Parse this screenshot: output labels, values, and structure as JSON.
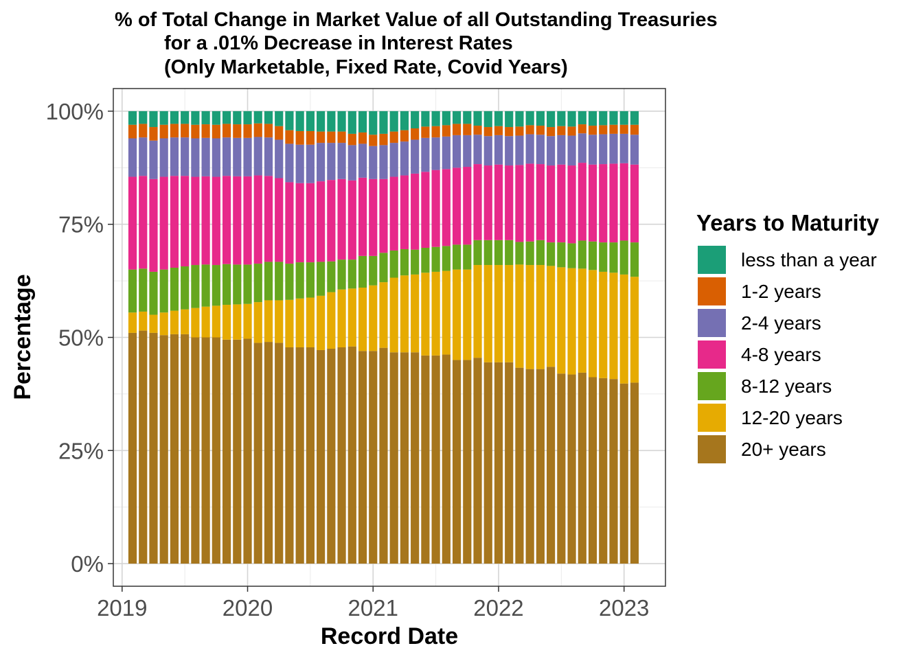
{
  "chart_data": {
    "type": "bar",
    "stacked": true,
    "title_lines": [
      "% of Total Change in Market Value of all Outstanding Treasuries",
      "for a .01% Decrease in Interest Rates",
      "(Only Marketable, Fixed Rate, Covid Years)"
    ],
    "xlabel": "Record Date",
    "ylabel": "Percentage",
    "x_ticks": [
      "2019",
      "2020",
      "2021",
      "2022",
      "2023"
    ],
    "y_ticks": [
      "0%",
      "25%",
      "50%",
      "75%",
      "100%"
    ],
    "xlim": [
      2018.93,
      2023.33
    ],
    "ylim": [
      -0.05,
      1.05
    ],
    "grid": true,
    "legend_title": "Years to Maturity",
    "legend_position": "right",
    "x": [
      "2019-02",
      "2019-03",
      "2019-04",
      "2019-05",
      "2019-06",
      "2019-07",
      "2019-08",
      "2019-09",
      "2019-10",
      "2019-11",
      "2019-12",
      "2020-01",
      "2020-02",
      "2020-03",
      "2020-04",
      "2020-05",
      "2020-06",
      "2020-07",
      "2020-08",
      "2020-09",
      "2020-10",
      "2020-11",
      "2020-12",
      "2021-01",
      "2021-02",
      "2021-03",
      "2021-04",
      "2021-05",
      "2021-06",
      "2021-07",
      "2021-08",
      "2021-09",
      "2021-10",
      "2021-11",
      "2021-12",
      "2022-01",
      "2022-02",
      "2022-03",
      "2022-04",
      "2022-05",
      "2022-06",
      "2022-07",
      "2022-08",
      "2022-09",
      "2022-10",
      "2022-11",
      "2022-12",
      "2023-01",
      "2023-02"
    ],
    "series": [
      {
        "name": "20+ years",
        "color": "#A6761D",
        "values": [
          0.51,
          0.515,
          0.51,
          0.505,
          0.507,
          0.507,
          0.5,
          0.5,
          0.5,
          0.495,
          0.495,
          0.497,
          0.488,
          0.49,
          0.488,
          0.478,
          0.478,
          0.478,
          0.472,
          0.475,
          0.478,
          0.48,
          0.47,
          0.47,
          0.477,
          0.467,
          0.467,
          0.467,
          0.46,
          0.46,
          0.462,
          0.45,
          0.45,
          0.455,
          0.445,
          0.445,
          0.445,
          0.433,
          0.43,
          0.43,
          0.435,
          0.42,
          0.418,
          0.422,
          0.412,
          0.41,
          0.408,
          0.398,
          0.4
        ]
      },
      {
        "name": "12-20 years",
        "color": "#E6AB02",
        "values": [
          0.045,
          0.042,
          0.04,
          0.05,
          0.052,
          0.055,
          0.065,
          0.068,
          0.07,
          0.077,
          0.078,
          0.077,
          0.09,
          0.092,
          0.094,
          0.105,
          0.108,
          0.11,
          0.12,
          0.125,
          0.128,
          0.128,
          0.14,
          0.145,
          0.145,
          0.165,
          0.17,
          0.172,
          0.183,
          0.185,
          0.185,
          0.2,
          0.2,
          0.205,
          0.215,
          0.215,
          0.215,
          0.228,
          0.23,
          0.23,
          0.223,
          0.235,
          0.235,
          0.23,
          0.237,
          0.235,
          0.235,
          0.241,
          0.234
        ]
      },
      {
        "name": "8-12 years",
        "color": "#66A61E",
        "values": [
          0.095,
          0.095,
          0.095,
          0.095,
          0.095,
          0.095,
          0.095,
          0.093,
          0.09,
          0.09,
          0.088,
          0.087,
          0.085,
          0.085,
          0.085,
          0.08,
          0.08,
          0.078,
          0.075,
          0.068,
          0.066,
          0.064,
          0.07,
          0.065,
          0.065,
          0.06,
          0.058,
          0.055,
          0.055,
          0.055,
          0.055,
          0.055,
          0.055,
          0.055,
          0.055,
          0.055,
          0.055,
          0.05,
          0.052,
          0.055,
          0.052,
          0.055,
          0.055,
          0.062,
          0.063,
          0.065,
          0.067,
          0.075,
          0.076
        ]
      },
      {
        "name": "4-8 years",
        "color": "#E7298A",
        "values": [
          0.205,
          0.205,
          0.205,
          0.205,
          0.203,
          0.2,
          0.195,
          0.195,
          0.195,
          0.195,
          0.195,
          0.195,
          0.195,
          0.19,
          0.185,
          0.18,
          0.175,
          0.175,
          0.178,
          0.18,
          0.178,
          0.175,
          0.173,
          0.17,
          0.163,
          0.163,
          0.163,
          0.168,
          0.168,
          0.17,
          0.17,
          0.17,
          0.172,
          0.168,
          0.165,
          0.167,
          0.165,
          0.17,
          0.172,
          0.168,
          0.17,
          0.172,
          0.172,
          0.172,
          0.17,
          0.173,
          0.174,
          0.171,
          0.172
        ]
      },
      {
        "name": "2-4 years",
        "color": "#7570B3",
        "values": [
          0.085,
          0.085,
          0.085,
          0.085,
          0.085,
          0.085,
          0.085,
          0.085,
          0.085,
          0.085,
          0.085,
          0.085,
          0.085,
          0.085,
          0.085,
          0.085,
          0.085,
          0.085,
          0.085,
          0.082,
          0.08,
          0.078,
          0.075,
          0.073,
          0.075,
          0.075,
          0.075,
          0.075,
          0.075,
          0.072,
          0.072,
          0.072,
          0.07,
          0.065,
          0.065,
          0.065,
          0.065,
          0.065,
          0.065,
          0.065,
          0.065,
          0.065,
          0.066,
          0.065,
          0.066,
          0.066,
          0.066,
          0.065,
          0.066
        ]
      },
      {
        "name": "1-2 years",
        "color": "#D95F02",
        "values": [
          0.03,
          0.03,
          0.03,
          0.03,
          0.03,
          0.03,
          0.03,
          0.03,
          0.03,
          0.03,
          0.03,
          0.03,
          0.03,
          0.03,
          0.03,
          0.03,
          0.03,
          0.03,
          0.025,
          0.025,
          0.025,
          0.025,
          0.025,
          0.025,
          0.025,
          0.025,
          0.025,
          0.025,
          0.025,
          0.025,
          0.025,
          0.025,
          0.025,
          0.02,
          0.02,
          0.02,
          0.02,
          0.02,
          0.02,
          0.02,
          0.02,
          0.02,
          0.02,
          0.02,
          0.02,
          0.02,
          0.02,
          0.02,
          0.022
        ]
      },
      {
        "name": "less than a year",
        "color": "#1B9E77",
        "values": [
          0.03,
          0.028,
          0.035,
          0.03,
          0.028,
          0.028,
          0.03,
          0.029,
          0.03,
          0.028,
          0.029,
          0.029,
          0.027,
          0.028,
          0.033,
          0.042,
          0.044,
          0.044,
          0.045,
          0.045,
          0.045,
          0.05,
          0.047,
          0.052,
          0.05,
          0.045,
          0.042,
          0.038,
          0.034,
          0.033,
          0.031,
          0.028,
          0.028,
          0.032,
          0.035,
          0.033,
          0.035,
          0.034,
          0.031,
          0.032,
          0.035,
          0.033,
          0.034,
          0.029,
          0.032,
          0.031,
          0.03,
          0.03,
          0.03
        ]
      }
    ]
  }
}
